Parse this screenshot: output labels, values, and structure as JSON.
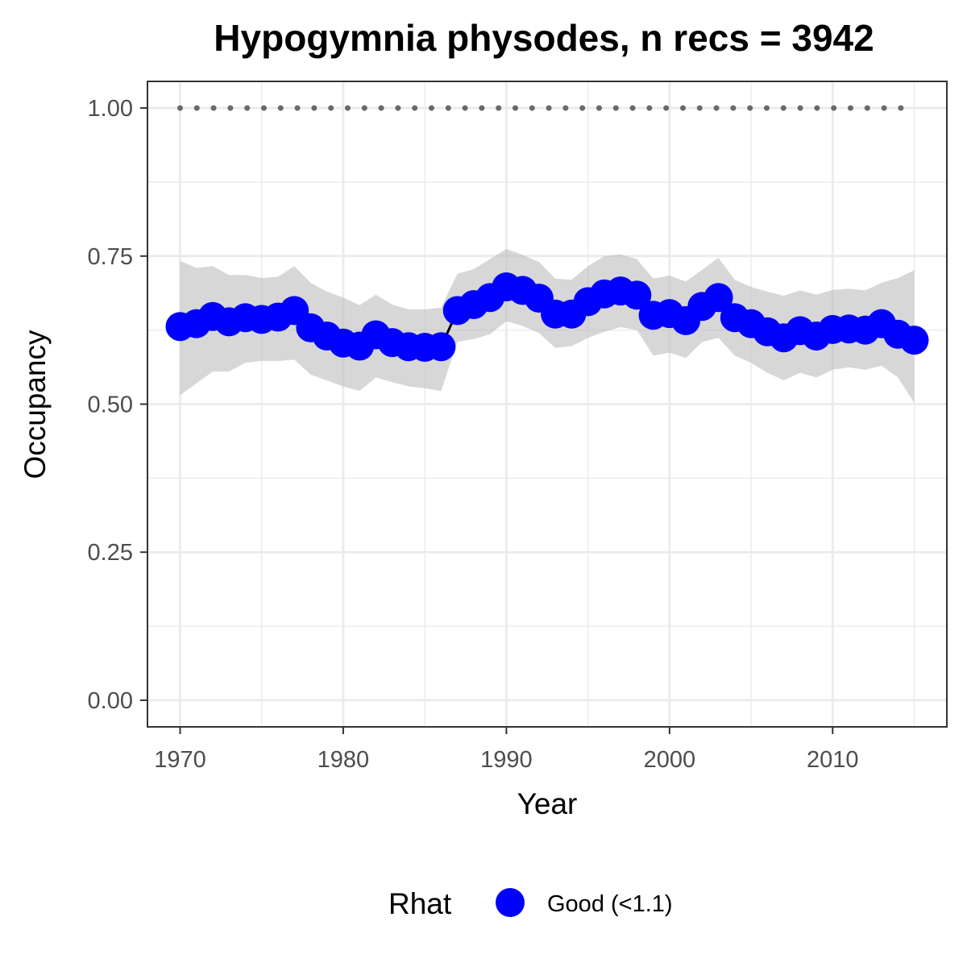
{
  "chart_data": {
    "type": "line",
    "title": "Hypogymnia physodes, n recs = 3942",
    "xlabel": "Year",
    "ylabel": "Occupancy",
    "xlim": [
      1968,
      2017
    ],
    "ylim": [
      -0.045,
      1.045
    ],
    "x_ticks": [
      1970,
      1980,
      1990,
      2000,
      2010
    ],
    "x_tick_labels": [
      "1970",
      "1980",
      "1990",
      "2000",
      "2010"
    ],
    "y_ticks": [
      0,
      0.25,
      0.5,
      0.75,
      1.0
    ],
    "y_tick_labels": [
      "0.00",
      "0.25",
      "0.50",
      "0.75",
      "1.00"
    ],
    "grid": true,
    "reference_line": {
      "y": 1.0,
      "style": "dotted",
      "color": "#696969"
    },
    "colors": {
      "point": "#0000ff",
      "line": "#000000",
      "ribbon": "#bebebe",
      "grid": "#ebebeb",
      "border": "#333333"
    },
    "series": [
      {
        "x": [
          1970,
          1971,
          1972,
          1973,
          1974,
          1975,
          1976,
          1977,
          1978,
          1979,
          1980,
          1981,
          1982,
          1983,
          1984,
          1985,
          1986,
          1987,
          1988,
          1989,
          1990,
          1991,
          1992,
          1993,
          1994,
          1995,
          1996,
          1997,
          1998,
          1999,
          2000,
          2001,
          2002,
          2003,
          2004,
          2005,
          2006,
          2007,
          2008,
          2009,
          2010,
          2011,
          2012,
          2013,
          2014,
          2015
        ],
        "y": [
          0.631,
          0.636,
          0.648,
          0.639,
          0.646,
          0.643,
          0.647,
          0.658,
          0.629,
          0.615,
          0.603,
          0.598,
          0.617,
          0.604,
          0.597,
          0.596,
          0.597,
          0.658,
          0.668,
          0.68,
          0.698,
          0.692,
          0.679,
          0.652,
          0.652,
          0.673,
          0.686,
          0.691,
          0.684,
          0.65,
          0.653,
          0.641,
          0.665,
          0.68,
          0.646,
          0.636,
          0.622,
          0.612,
          0.624,
          0.615,
          0.626,
          0.627,
          0.625,
          0.636,
          0.618,
          0.608
        ],
        "lower": [
          0.515,
          0.535,
          0.555,
          0.555,
          0.57,
          0.573,
          0.573,
          0.575,
          0.55,
          0.54,
          0.53,
          0.522,
          0.545,
          0.537,
          0.53,
          0.527,
          0.522,
          0.605,
          0.61,
          0.618,
          0.64,
          0.632,
          0.62,
          0.595,
          0.598,
          0.612,
          0.622,
          0.63,
          0.625,
          0.582,
          0.587,
          0.578,
          0.605,
          0.612,
          0.582,
          0.57,
          0.553,
          0.54,
          0.553,
          0.545,
          0.558,
          0.562,
          0.558,
          0.565,
          0.545,
          0.502
        ],
        "upper": [
          0.742,
          0.73,
          0.733,
          0.718,
          0.718,
          0.713,
          0.715,
          0.733,
          0.705,
          0.69,
          0.68,
          0.667,
          0.685,
          0.668,
          0.66,
          0.66,
          0.663,
          0.72,
          0.728,
          0.745,
          0.762,
          0.752,
          0.74,
          0.712,
          0.71,
          0.733,
          0.75,
          0.753,
          0.745,
          0.712,
          0.717,
          0.707,
          0.727,
          0.747,
          0.71,
          0.698,
          0.69,
          0.683,
          0.692,
          0.685,
          0.693,
          0.695,
          0.692,
          0.705,
          0.713,
          0.726
        ]
      }
    ],
    "legend": {
      "position": "bottom",
      "title": "Rhat",
      "entries": [
        {
          "label": "Good (<1.1)",
          "color": "#0000ff"
        }
      ]
    }
  }
}
